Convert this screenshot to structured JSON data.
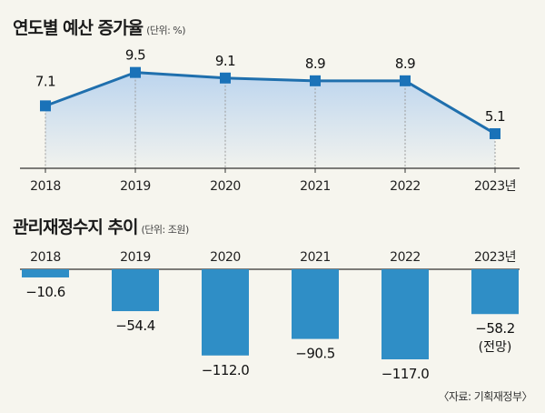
{
  "chart1": {
    "title": "연도별 예산 증가율",
    "unit": "(단위: %)"
  },
  "chart2": {
    "title": "관리재정수지 추이",
    "unit": "(단위: 조원)",
    "note": "(전망)"
  },
  "source": "〈자료: 기획재정부〉",
  "colors": {
    "line": "#1f6fad",
    "marker": "#1a72b8",
    "area_top": "#b9d3ee",
    "bar": "#2f8ec6",
    "background": "#f6f5ee"
  },
  "chart_data": [
    {
      "type": "area",
      "categories": [
        "2018",
        "2019",
        "2020",
        "2021",
        "2022",
        "2023년"
      ],
      "values": [
        7.1,
        9.5,
        9.1,
        8.9,
        8.9,
        5.1
      ],
      "value_labels": [
        "7.1",
        "9.5",
        "9.1",
        "8.9",
        "8.9",
        "5.1"
      ],
      "title": "연도별 예산 증가율",
      "ylabel": "",
      "xlabel": "",
      "grid": "vertical dashed"
    },
    {
      "type": "bar",
      "categories": [
        "2018",
        "2019",
        "2020",
        "2021",
        "2022",
        "2023년"
      ],
      "values": [
        -10.6,
        -54.4,
        -112.0,
        -90.5,
        -117.0,
        -58.2
      ],
      "value_labels": [
        "−10.6",
        "−54.4",
        "−112.0",
        "−90.5",
        "−117.0",
        "−58.2"
      ],
      "title": "관리재정수지 추이",
      "ylabel": "",
      "xlabel": ""
    }
  ]
}
